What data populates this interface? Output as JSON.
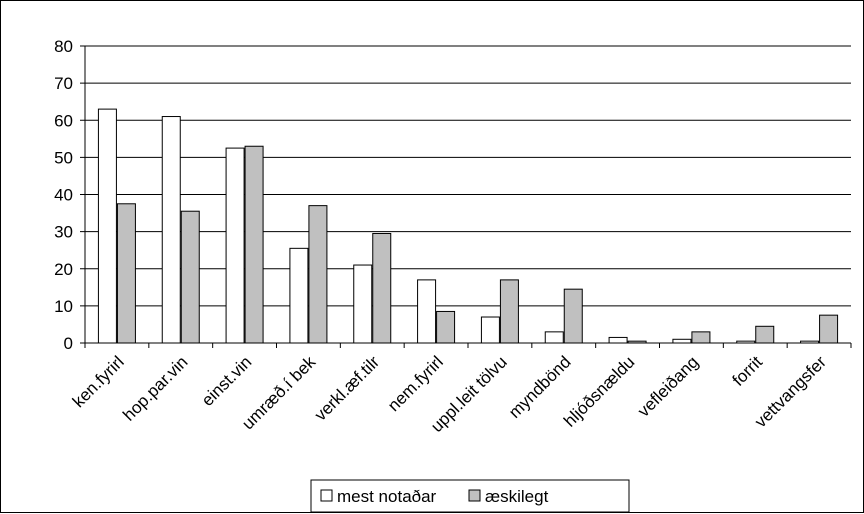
{
  "chart_data": {
    "type": "bar",
    "title": "",
    "xlabel": "",
    "ylabel": "",
    "categories": [
      "ken.fyrirl",
      "hop.par.vin",
      "einst.vin",
      "umræð.í bek",
      "verkl.æf.tilr",
      "nem.fyrirl",
      "uppl.leit tölvu",
      "myndbönd",
      "hljóðsnældu",
      "vefleiðang",
      "forrit",
      "vettvangsfer"
    ],
    "series": [
      {
        "name": "mest notaðar",
        "color": "#ffffff",
        "values": [
          63,
          61,
          52.5,
          25.5,
          21,
          17,
          7,
          3,
          1.5,
          1,
          0.5,
          0.5
        ]
      },
      {
        "name": "æskilegt",
        "color": "#c0c0c0",
        "values": [
          37.5,
          35.5,
          53,
          37,
          29.5,
          8.5,
          17,
          14.5,
          0.5,
          3,
          4.5,
          7.5
        ]
      }
    ],
    "ylim": [
      0,
      80
    ],
    "yticks": [
      0,
      10,
      20,
      30,
      40,
      50,
      60,
      70,
      80
    ],
    "grid": true,
    "legend": "bottom"
  }
}
